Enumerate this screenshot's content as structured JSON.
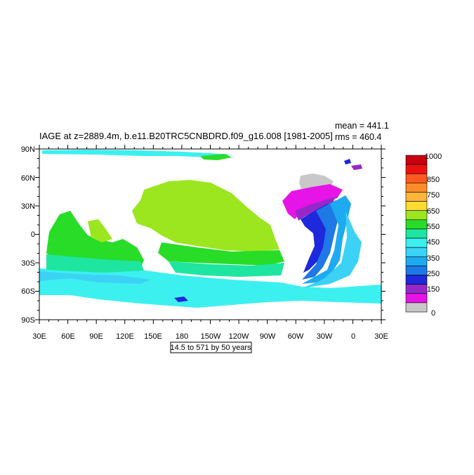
{
  "map": {
    "title": "IAGE at z=2889.4m, b.e11.B20TRC5CNBDRD.f09_g16.008 [1981-2005]",
    "mean_text": "mean = 441.1",
    "rms_text": "rms = 460.4",
    "contour_info": "14.5 to 571 by 50 years",
    "lat_labels": [
      "90N",
      "60N",
      "30N",
      "0",
      "30S",
      "60S",
      "90S"
    ],
    "lon_labels": [
      "30E",
      "60E",
      "90E",
      "120E",
      "150E",
      "180",
      "150W",
      "120W",
      "90W",
      "60W",
      "30W",
      "0",
      "30E"
    ]
  },
  "colorbar": {
    "labels": [
      "1000",
      "850",
      "750",
      "650",
      "550",
      "450",
      "350",
      "250",
      "150",
      "0"
    ],
    "colors_top_to_bottom": [
      "#c8000f",
      "#ee1010",
      "#ff5a1e",
      "#ff8c28",
      "#ffb43c",
      "#ffdc32",
      "#9be61e",
      "#28dc28",
      "#1ee6a0",
      "#3cf0f0",
      "#3cd2f5",
      "#1eaaf0",
      "#1e78e6",
      "#1e28dc",
      "#9628c8",
      "#e614e6",
      "#c8c8c8"
    ]
  },
  "colors": {
    "grey": "#c8c8c8",
    "magenta": "#e614e6",
    "purple": "#9628c8",
    "blue": "#1e28dc",
    "mid_blue": "#1e78e6",
    "light_blue": "#1eaaf0",
    "sky": "#3cd2f5",
    "cyan": "#3cf0f0",
    "aqua": "#1ee6a0",
    "green": "#28dc28",
    "yellow_green": "#9be61e"
  }
}
